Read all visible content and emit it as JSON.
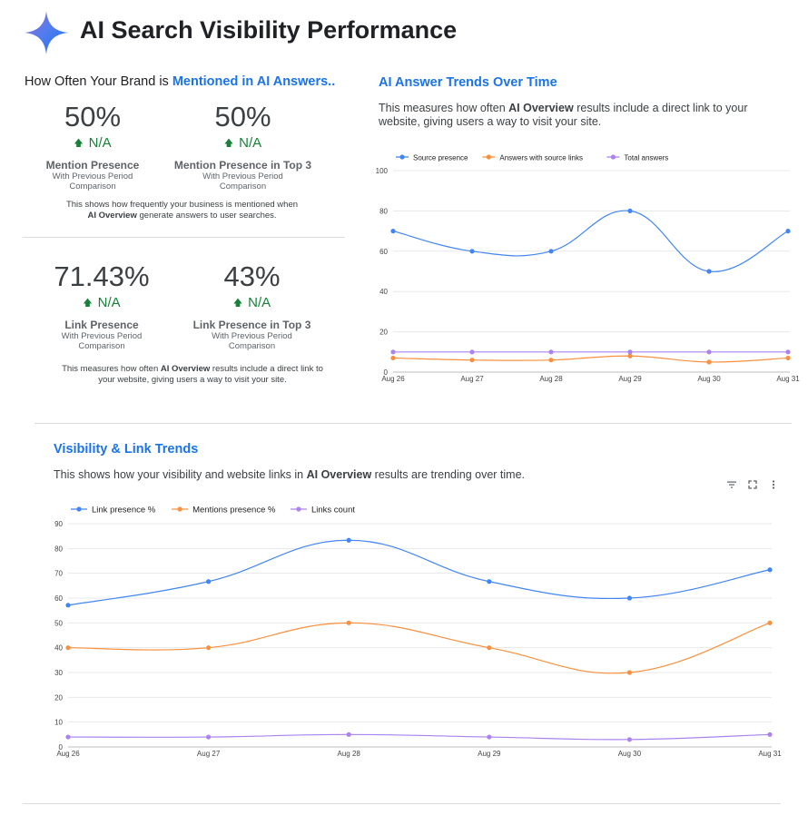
{
  "header": {
    "title": "AI Search Visibility Performance",
    "logo_icon": "sparkle-star-icon"
  },
  "brand_section": {
    "heading_prefix": "How Often Your Brand is",
    "heading_highlight": "Mentioned in AI Answers..",
    "metrics_row1": [
      {
        "value": "50%",
        "change": "N/A",
        "label": "Mention Presence",
        "sub": "With Previous Period Comparison"
      },
      {
        "value": "50%",
        "change": "N/A",
        "label": "Mention Presence in Top 3",
        "sub": "With Previous Period Comparison"
      }
    ],
    "note1": {
      "pre": "This shows how frequently your business is mentioned when",
      "bold": "AI Overview",
      "post": "generate answers to user searches."
    },
    "metrics_row2": [
      {
        "value": "71.43%",
        "change": "N/A",
        "label": "Link Presence",
        "sub": "With Previous Period Comparison"
      },
      {
        "value": "43%",
        "change": "N/A",
        "label": "Link Presence in Top 3",
        "sub": "With Previous Period Comparison"
      }
    ],
    "note2": {
      "pre": "This measures how often",
      "bold": "AI Overview",
      "post": "results include a direct link to your website, giving users a way to visit your site."
    },
    "change_icon": "arrow-up-icon",
    "colors": {
      "positive": "#188038"
    }
  },
  "answer_trends": {
    "title": "AI Answer Trends Over Time",
    "desc_pre": "This measures how often",
    "desc_bold": "AI Overview",
    "desc_post": "results include a direct link to your website, giving users a way to visit your site."
  },
  "visibility_trends": {
    "title": "Visibility & Link Trends",
    "desc_pre": "This shows how your visibility and website links in",
    "desc_bold": "AI Overview",
    "desc_post": "results are trending over time.",
    "toolbar_icons": [
      "filter-icon",
      "fullscreen-icon",
      "more-vert-icon"
    ]
  },
  "chart_data": [
    {
      "type": "line",
      "categories": [
        "Aug 26",
        "Aug 27",
        "Aug 28",
        "Aug 29",
        "Aug 30",
        "Aug 31"
      ],
      "series": [
        {
          "name": "Source presence",
          "color": "#4285f4",
          "values": [
            70,
            60,
            60,
            80,
            50,
            70
          ]
        },
        {
          "name": "Answers with source links",
          "color": "#fa903e",
          "values": [
            7,
            6,
            6,
            8,
            5,
            7
          ]
        },
        {
          "name": "Total answers",
          "color": "#ab82f0",
          "values": [
            10,
            10,
            10,
            10,
            10,
            10
          ]
        }
      ],
      "yticks": [
        0,
        20,
        40,
        60,
        80,
        100
      ],
      "ylim": [
        0,
        100
      ],
      "legend": "top-left",
      "grid": true
    },
    {
      "type": "line",
      "categories": [
        "Aug 26",
        "Aug 27",
        "Aug 28",
        "Aug 29",
        "Aug 30",
        "Aug 31"
      ],
      "series": [
        {
          "name": "Link presence %",
          "color": "#4285f4",
          "values": [
            57.14,
            66.67,
            83.33,
            66.67,
            60,
            71.43
          ]
        },
        {
          "name": "Mentions presence %",
          "color": "#fa903e",
          "values": [
            40,
            40,
            50,
            40,
            30,
            50
          ]
        },
        {
          "name": "Links count",
          "color": "#ab82f0",
          "values": [
            4,
            4,
            5,
            4,
            3,
            5
          ]
        }
      ],
      "yticks": [
        0,
        10,
        20,
        30,
        40,
        50,
        60,
        70,
        80,
        90
      ],
      "ylim": [
        0,
        90
      ],
      "legend": "top-left",
      "grid": true
    }
  ]
}
